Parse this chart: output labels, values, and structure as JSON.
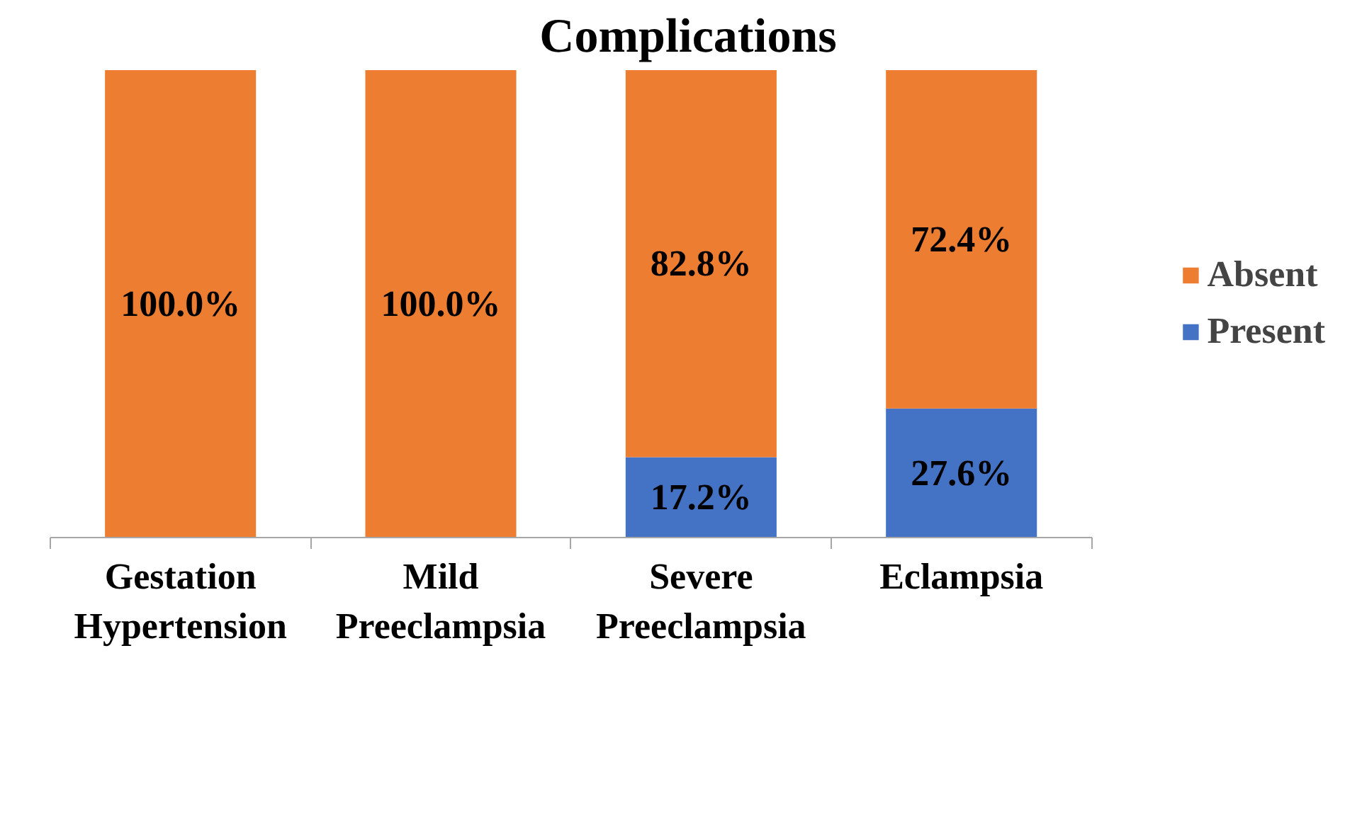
{
  "chart_data": {
    "type": "bar",
    "title": "Complications",
    "stacked": true,
    "legend": "right",
    "grid": false,
    "categories": [
      "Gestation\nHypertension",
      "Mild\nPreeclampsia",
      "Severe\nPreeclampsia",
      "Eclampsia"
    ],
    "series": [
      {
        "name": "Present",
        "color": "#4472c4",
        "values": [
          0,
          0,
          17.2,
          27.6
        ],
        "value_labels": [
          null,
          null,
          "17.2%",
          "27.6%"
        ]
      },
      {
        "name": "Absent",
        "color": "#ed7d31",
        "values": [
          100.0,
          100.0,
          82.8,
          72.4
        ],
        "value_labels": [
          "100.0%",
          "100.0%",
          "82.8%",
          "72.4%"
        ]
      }
    ]
  }
}
